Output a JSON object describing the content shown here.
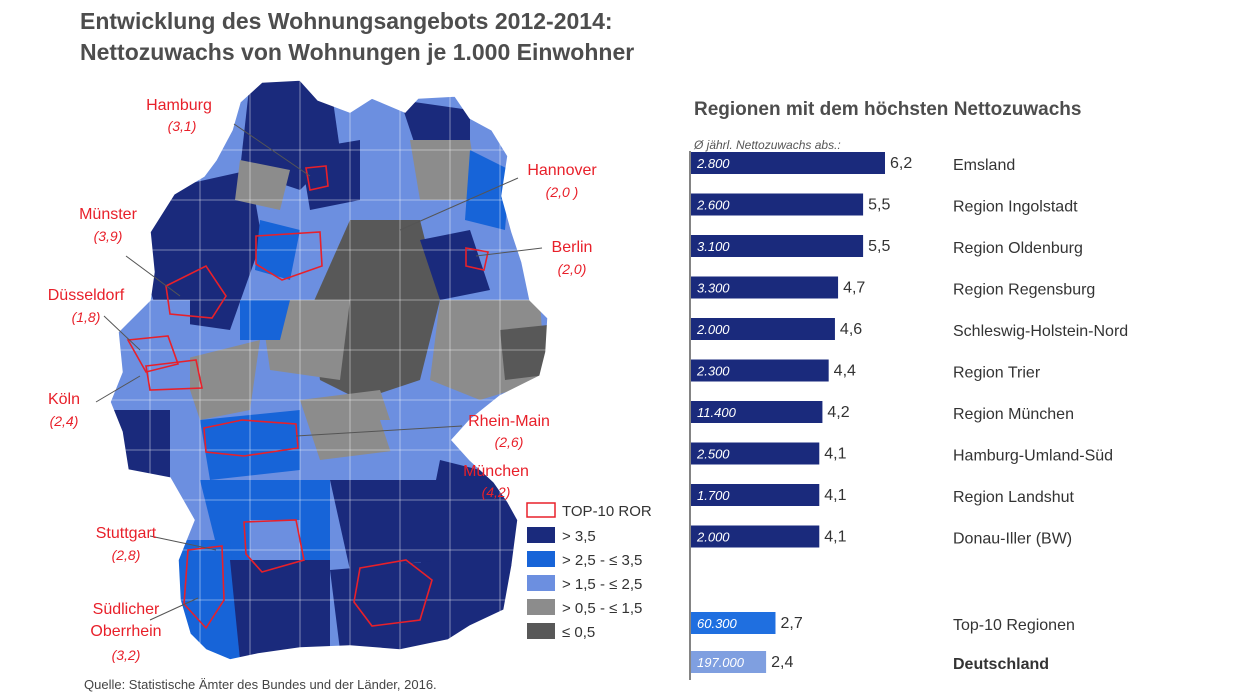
{
  "title": {
    "line1": "Entwicklung des Wohnungsangebots 2012-2014:",
    "line2": "Nettozuwachs von Wohnungen je 1.000 Einwohner"
  },
  "source": "Quelle: Statistische Ämter des Bundes und der Länder, 2016.",
  "colors": {
    "c1": "#1a2a7c",
    "c2": "#1764d8",
    "c3": "#6c8fe0",
    "c4": "#8c8c8c",
    "c5": "#585858",
    "highlight": "#e8202a",
    "bar_total_top10": "#1f6fe0",
    "bar_total_de": "#7f9fe0"
  },
  "legend": [
    {
      "label": "TOP-10 ROR",
      "color": "outline"
    },
    {
      "label": "> 3,5",
      "color": "c1"
    },
    {
      "label": "> 2,5 - ≤ 3,5",
      "color": "c2"
    },
    {
      "label": "> 1,5 - ≤ 2,5",
      "color": "c3"
    },
    {
      "label": "> 0,5 - ≤ 1,5",
      "color": "c4"
    },
    {
      "label": "≤ 0,5",
      "color": "c5"
    }
  ],
  "map_labels": [
    {
      "name": "Hamburg",
      "value": "(3,1)"
    },
    {
      "name": "Hannover",
      "value": "(2,0 )"
    },
    {
      "name": "Münster",
      "value": "(3,9)"
    },
    {
      "name": "Berlin",
      "value": "(2,0)"
    },
    {
      "name": "Düsseldorf",
      "value": "(1,8)"
    },
    {
      "name": "Köln",
      "value": "(2,4)"
    },
    {
      "name": "Rhein-Main",
      "value": "(2,6)"
    },
    {
      "name": "München",
      "value": "(4,2)"
    },
    {
      "name": "Stuttgart",
      "value": "(2,8)"
    },
    {
      "name": "Südlicher Oberrhein",
      "name_line1": "Südlicher",
      "name_line2": "Oberrhein",
      "value": "(3,2)"
    }
  ],
  "chart_data": {
    "type": "bar",
    "orientation": "horizontal",
    "title": "Regionen mit dem höchsten Nettozuwachs",
    "subtitle": "Ø jährl. Nettozuwachs abs.:",
    "categories": [
      "Emsland",
      "Region Ingolstadt",
      "Region Oldenburg",
      "Region Regensburg",
      "Schleswig-Holstein-Nord",
      "Region Trier",
      "Region München",
      "Hamburg-Umland-Süd",
      "Region Landshut",
      "Donau-Iller (BW)"
    ],
    "values": [
      6.2,
      5.5,
      5.5,
      4.7,
      4.6,
      4.4,
      4.2,
      4.1,
      4.1,
      4.1
    ],
    "value_labels": [
      "6,2",
      "5,5",
      "5,5",
      "4,7",
      "4,6",
      "4,4",
      "4,2",
      "4,1",
      "4,1",
      "4,1"
    ],
    "abs_labels": [
      "2.800",
      "2.600",
      "3.100",
      "3.300",
      "2.000",
      "2.300",
      "11.400",
      "2.500",
      "1.700",
      "2.000"
    ],
    "totals": [
      {
        "category": "Top-10 Regionen",
        "value": 2.7,
        "value_label": "2,7",
        "abs_label": "60.300",
        "bold": false
      },
      {
        "category": "Deutschland",
        "value": 2.4,
        "value_label": "2,4",
        "abs_label": "197.000",
        "bold": true
      }
    ],
    "bar_color": "#1a2a7c",
    "xlim": [
      0,
      6.2
    ]
  }
}
